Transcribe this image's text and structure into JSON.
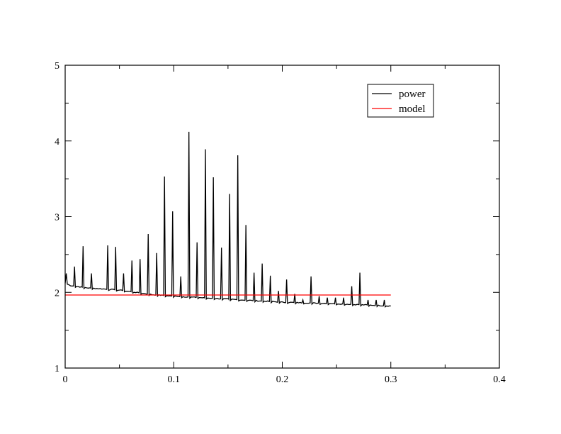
{
  "chart_data": {
    "type": "line",
    "title": "",
    "xlabel": "",
    "ylabel": "",
    "xlim": [
      0,
      0.4
    ],
    "ylim": [
      1,
      5
    ],
    "x_ticks": [
      0,
      0.1,
      0.2,
      0.3,
      0.4
    ],
    "x_tick_labels": [
      "0",
      "0.1",
      "0.2",
      "0.3",
      "0.4"
    ],
    "y_ticks": [
      1,
      2,
      3,
      4,
      5
    ],
    "y_tick_labels": [
      "1",
      "2",
      "3",
      "4",
      "5"
    ],
    "x_minor_step": 0.05,
    "y_minor_step": 0.5,
    "grid": false,
    "legend": {
      "position": "top-right"
    },
    "series": [
      {
        "name": "power",
        "color": "#000000",
        "baseline": [
          [
            0,
            2.12
          ],
          [
            0.005,
            2.09
          ],
          [
            0.02,
            2.06
          ],
          [
            0.05,
            2.03
          ],
          [
            0.08,
            1.97
          ],
          [
            0.1,
            1.95
          ],
          [
            0.15,
            1.91
          ],
          [
            0.2,
            1.87
          ],
          [
            0.25,
            1.85
          ],
          [
            0.3,
            1.82
          ]
        ],
        "start_spike": [
          0.001,
          2.25
        ],
        "peaks": [
          [
            0.0086,
            2.34
          ],
          [
            0.0165,
            2.61
          ],
          [
            0.0242,
            2.25
          ],
          [
            0.0392,
            2.62
          ],
          [
            0.0465,
            2.6
          ],
          [
            0.0538,
            2.25
          ],
          [
            0.0615,
            2.42
          ],
          [
            0.069,
            2.44
          ],
          [
            0.0765,
            2.77
          ],
          [
            0.0843,
            2.52
          ],
          [
            0.0915,
            3.53
          ],
          [
            0.099,
            3.07
          ],
          [
            0.1065,
            2.21
          ],
          [
            0.114,
            4.12
          ],
          [
            0.1215,
            2.66
          ],
          [
            0.1292,
            3.89
          ],
          [
            0.1365,
            3.52
          ],
          [
            0.144,
            2.59
          ],
          [
            0.1515,
            3.3
          ],
          [
            0.159,
            3.81
          ],
          [
            0.1665,
            2.89
          ],
          [
            0.174,
            2.26
          ],
          [
            0.1815,
            2.38
          ],
          [
            0.189,
            2.22
          ],
          [
            0.1965,
            2.02
          ],
          [
            0.204,
            2.17
          ],
          [
            0.2115,
            1.98
          ],
          [
            0.219,
            1.9
          ],
          [
            0.2265,
            2.21
          ],
          [
            0.234,
            1.95
          ],
          [
            0.2415,
            1.93
          ],
          [
            0.249,
            1.93
          ],
          [
            0.2565,
            1.93
          ],
          [
            0.264,
            2.08
          ],
          [
            0.2715,
            2.26
          ],
          [
            0.279,
            1.9
          ],
          [
            0.2865,
            1.9
          ],
          [
            0.294,
            1.9
          ]
        ]
      },
      {
        "name": "model",
        "color": "#ff0000",
        "points": [
          [
            0,
            1.965
          ],
          [
            0.3,
            1.965
          ]
        ]
      }
    ]
  }
}
